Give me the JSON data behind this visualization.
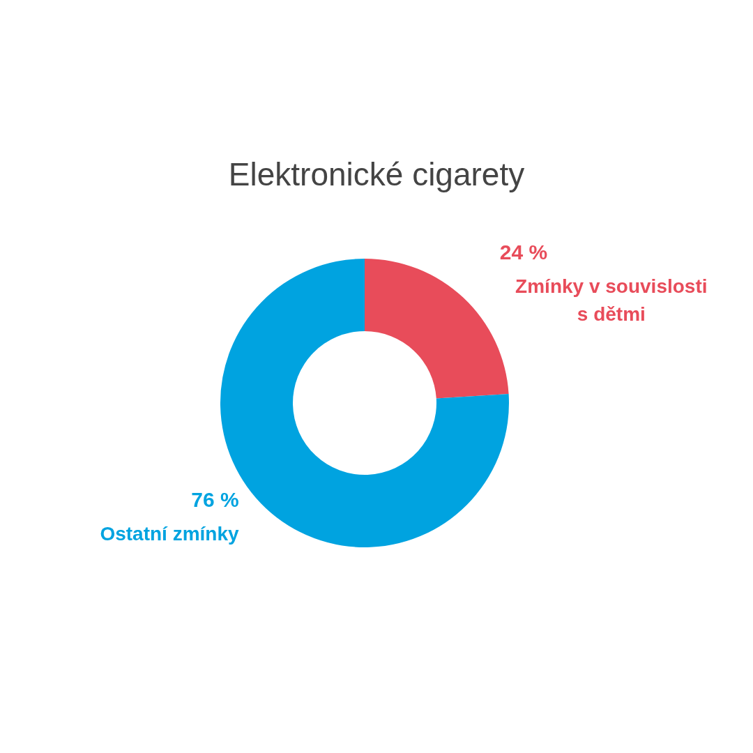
{
  "chart_data": {
    "type": "donut",
    "title": "Elektronické cigarety",
    "categories": [
      "Zmínky v souvislosti s dětmi",
      "Ostatní zmínky"
    ],
    "values": [
      24,
      76
    ],
    "colors": [
      "#e84c5a",
      "#00a3e0"
    ],
    "value_labels": [
      "24 %",
      "76 %"
    ],
    "legend": false
  }
}
